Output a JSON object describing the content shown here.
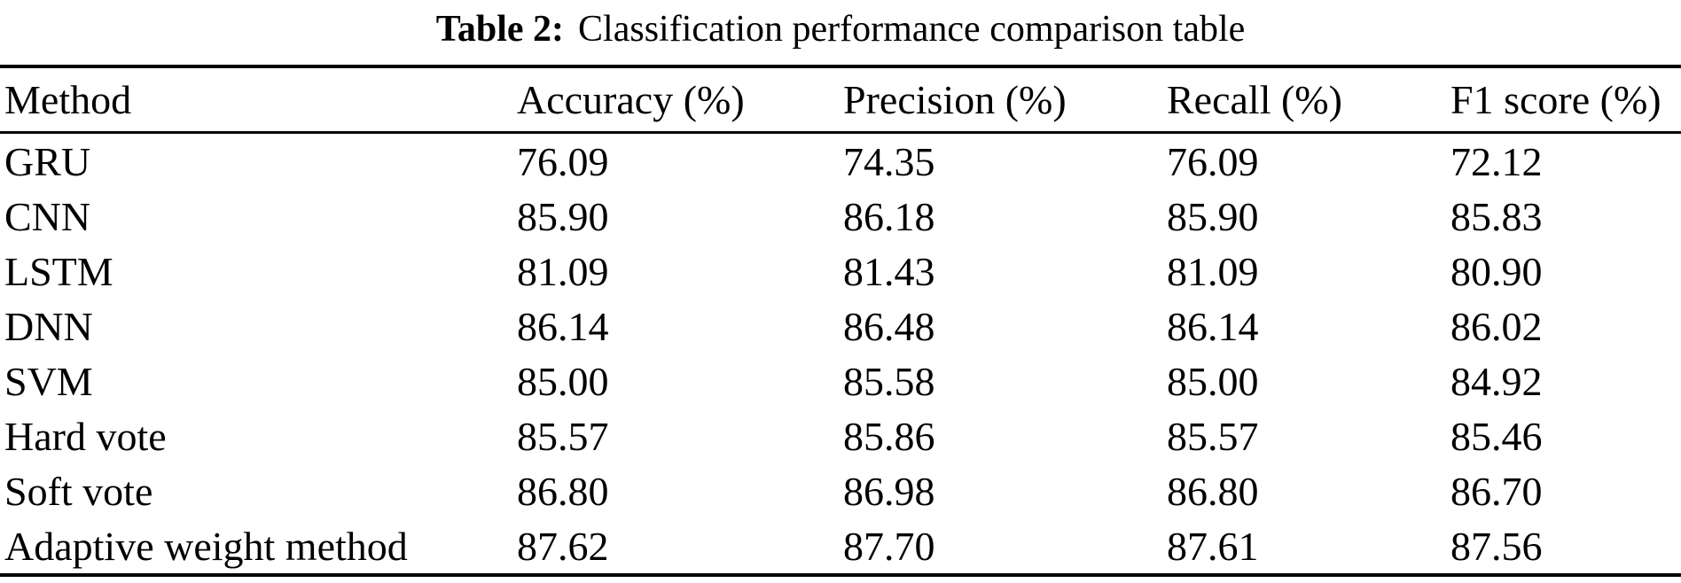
{
  "caption": {
    "label": "Table 2:",
    "text": "Classification performance comparison table"
  },
  "table": {
    "columns": [
      "Method",
      "Accuracy (%)",
      "Precision (%)",
      "Recall (%)",
      "F1 score (%)"
    ],
    "rows": [
      {
        "method": "GRU",
        "values": [
          "76.09",
          "74.35",
          "76.09",
          "72.12"
        ]
      },
      {
        "method": "CNN",
        "values": [
          "85.90",
          "86.18",
          "85.90",
          "85.83"
        ]
      },
      {
        "method": "LSTM",
        "values": [
          "81.09",
          "81.43",
          "81.09",
          "80.90"
        ]
      },
      {
        "method": "DNN",
        "values": [
          "86.14",
          "86.48",
          "86.14",
          "86.02"
        ]
      },
      {
        "method": "SVM",
        "values": [
          "85.00",
          "85.58",
          "85.00",
          "84.92"
        ]
      },
      {
        "method": "Hard vote",
        "values": [
          "85.57",
          "85.86",
          "85.57",
          "85.46"
        ]
      },
      {
        "method": "Soft vote",
        "values": [
          "86.80",
          "86.98",
          "86.80",
          "86.70"
        ]
      },
      {
        "method": "Adaptive weight method",
        "values": [
          "87.62",
          "87.70",
          "87.61",
          "87.56"
        ]
      }
    ]
  },
  "colors": {
    "text": "#000000",
    "background": "#ffffff",
    "rule": "#000000"
  }
}
